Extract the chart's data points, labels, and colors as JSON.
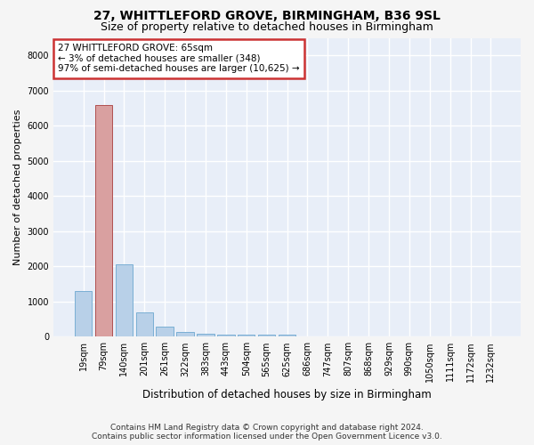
{
  "title": "27, WHITTLEFORD GROVE, BIRMINGHAM, B36 9SL",
  "subtitle": "Size of property relative to detached houses in Birmingham",
  "xlabel": "Distribution of detached houses by size in Birmingham",
  "ylabel": "Number of detached properties",
  "footer_line1": "Contains HM Land Registry data © Crown copyright and database right 2024.",
  "footer_line2": "Contains public sector information licensed under the Open Government Licence v3.0.",
  "annotation_title": "27 WHITTLEFORD GROVE: 65sqm",
  "annotation_line1": "← 3% of detached houses are smaller (348)",
  "annotation_line2": "97% of semi-detached houses are larger (10,625) →",
  "bar_labels": [
    "19sqm",
    "79sqm",
    "140sqm",
    "201sqm",
    "261sqm",
    "322sqm",
    "383sqm",
    "443sqm",
    "504sqm",
    "565sqm",
    "625sqm",
    "686sqm",
    "747sqm",
    "807sqm",
    "868sqm",
    "929sqm",
    "990sqm",
    "1050sqm",
    "1111sqm",
    "1172sqm",
    "1232sqm"
  ],
  "bar_values": [
    1300,
    6580,
    2060,
    680,
    275,
    145,
    85,
    50,
    50,
    50,
    55,
    0,
    0,
    0,
    0,
    0,
    0,
    0,
    0,
    0,
    0
  ],
  "highlight_bar_index": 1,
  "bar_color": "#b8d0e8",
  "bar_edge_color": "#7aafd4",
  "highlight_color": "#d9a0a0",
  "highlight_edge_color": "#b05050",
  "annotation_box_color": "#ffffff",
  "annotation_box_edge": "#cc3333",
  "bg_color": "#e8eef8",
  "grid_color": "#ffffff",
  "fig_bg": "#f5f5f5",
  "ylim": [
    0,
    8500
  ],
  "yticks": [
    0,
    1000,
    2000,
    3000,
    4000,
    5000,
    6000,
    7000,
    8000
  ],
  "title_fontsize": 10,
  "subtitle_fontsize": 9,
  "ylabel_fontsize": 8,
  "xlabel_fontsize": 8.5,
  "tick_fontsize": 7,
  "annotation_fontsize": 7.5,
  "footer_fontsize": 6.5
}
